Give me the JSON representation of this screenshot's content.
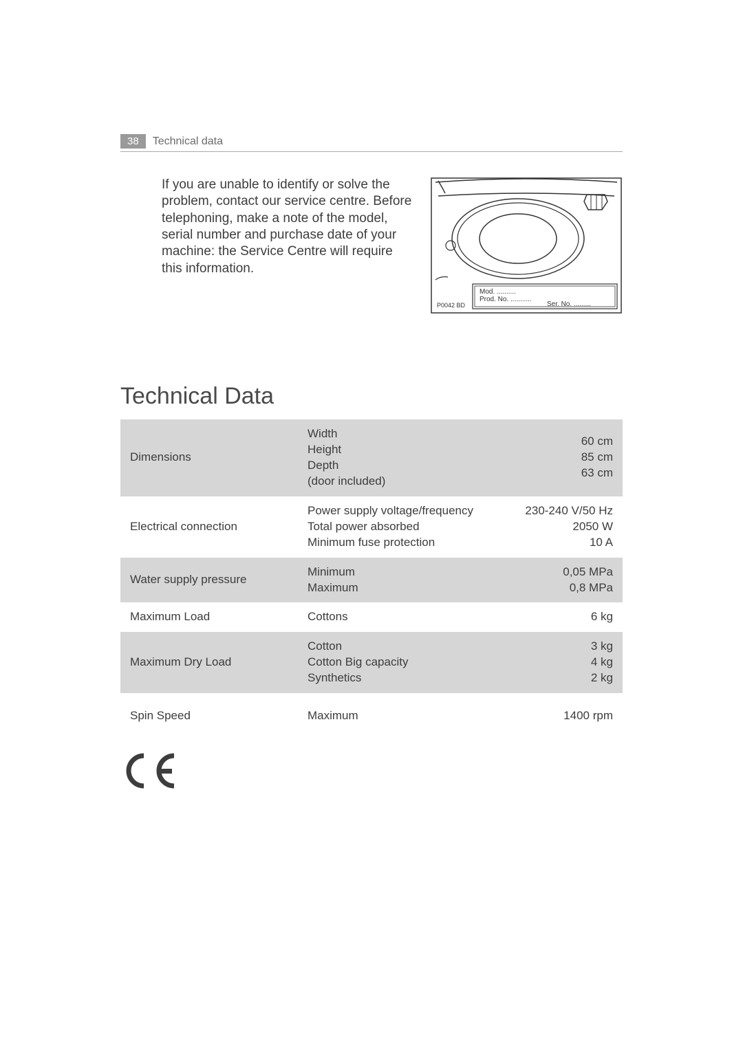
{
  "header": {
    "page_number": "38",
    "section": "Technical data"
  },
  "intro": {
    "text": "If you are unable to identify or solve the problem, contact our service centre. Before telephoning, make a note of the model, serial number and purchase date of your machine: the Service Centre will require this information."
  },
  "diagram": {
    "label_mod": "Mod. ..........",
    "label_prod": "Prod. No. ...........",
    "label_ser": "Ser. No. .........",
    "ref": "P0042 BD",
    "stroke": "#333333",
    "label_font": 10
  },
  "section_title": "Technical Data",
  "table": {
    "shade_color": "#d6d6d6",
    "rows": [
      {
        "shaded": true,
        "label": "Dimensions",
        "mid": "Width\nHeight\nDepth\n(door included)",
        "val": "60 cm\n85 cm\n63 cm\n "
      },
      {
        "shaded": false,
        "label": "Electrical connection",
        "mid": "Power supply voltage/frequency\nTotal power absorbed\nMinimum fuse protection",
        "val": "230-240 V/50 Hz\n2050 W\n10 A"
      },
      {
        "shaded": true,
        "label": "Water supply pressure",
        "mid": "Minimum\nMaximum",
        "val": "0,05 MPa\n0,8   MPa"
      },
      {
        "shaded": false,
        "label": "Maximum Load",
        "mid": "Cottons",
        "val": "6 kg"
      },
      {
        "shaded": true,
        "label": "Maximum Dry Load",
        "mid": "Cotton\nCotton Big capacity\nSynthetics",
        "val": "3 kg\n4 kg\n2 kg"
      },
      {
        "shaded": false,
        "label": "Spin Speed",
        "mid": "Maximum",
        "val": "1400 rpm"
      }
    ]
  },
  "ce_mark": "CE"
}
